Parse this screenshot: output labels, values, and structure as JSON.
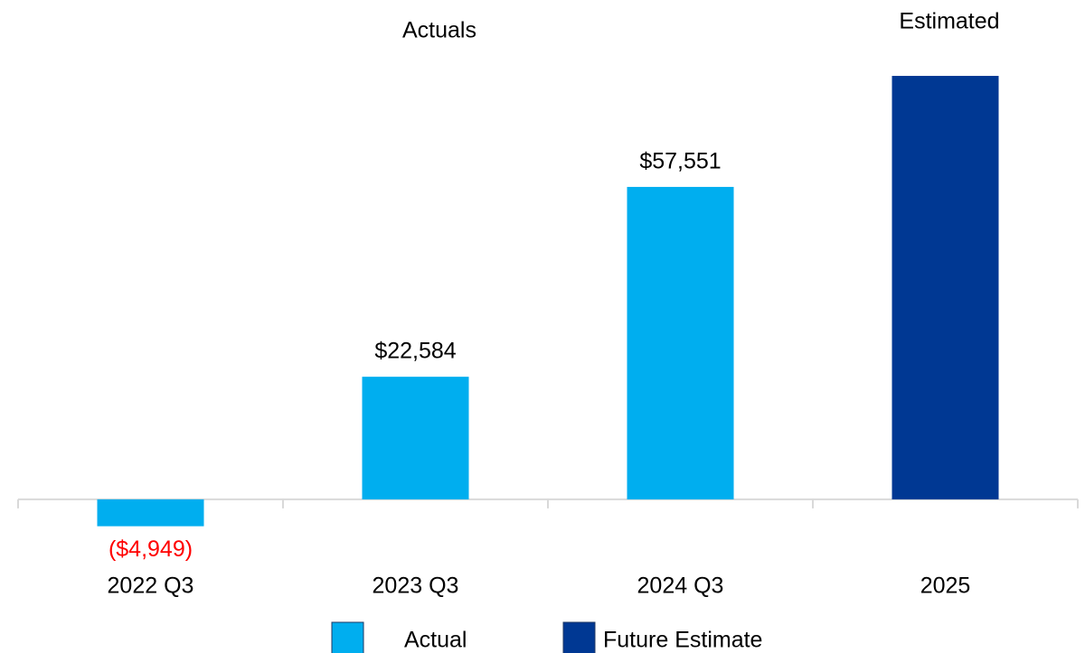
{
  "chart_data": {
    "type": "bar",
    "annotations": [
      "Actuals",
      "Estimated"
    ],
    "categories": [
      "2022 Q3",
      "2023 Q3",
      "2024 Q3",
      "2025"
    ],
    "series": [
      {
        "name": "Actual",
        "color": "#00aeef",
        "values": [
          -4949,
          22584,
          57551,
          null
        ],
        "value_labels": [
          "($4,949)",
          "$22,584",
          "$57,551",
          null
        ]
      },
      {
        "name": "Future Estimate",
        "color": "#003893",
        "values": [
          null,
          null,
          null,
          78000
        ]
      }
    ],
    "negative_label_color": "#ff0000",
    "ylim": [
      -10000,
      80000
    ]
  }
}
